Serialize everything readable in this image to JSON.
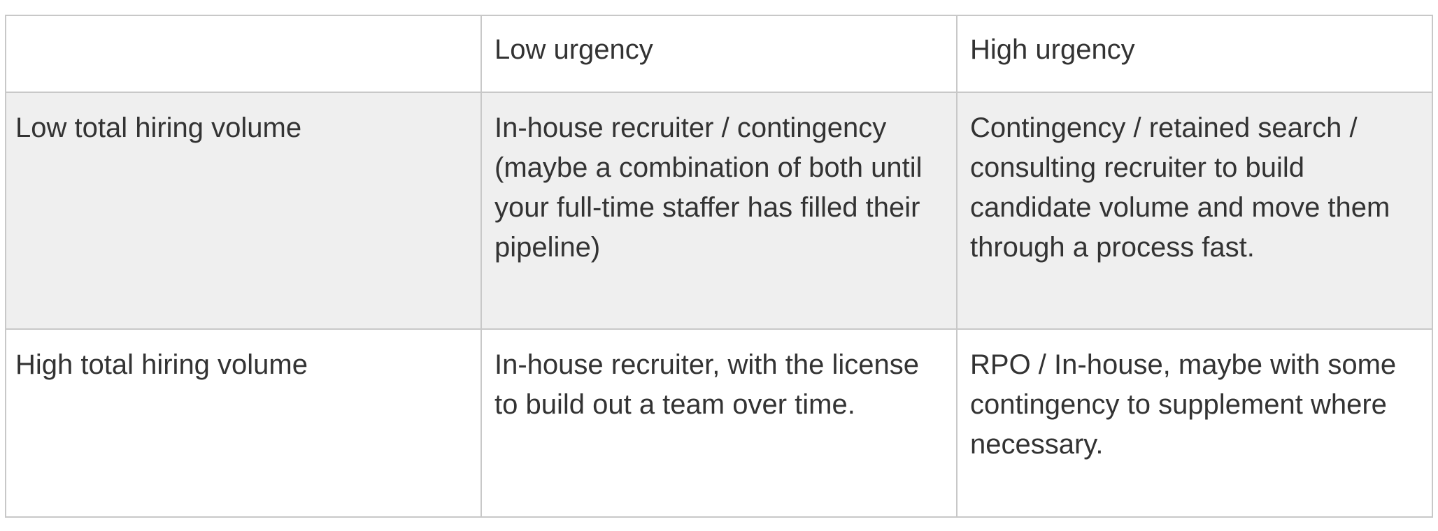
{
  "table": {
    "headers": [
      "",
      "Low urgency",
      "High urgency"
    ],
    "rows": [
      {
        "label": "Low total hiring volume",
        "low_urgency": "In-house recruiter / contingency (maybe a combination of both until your full-time staffer has filled their pipeline)",
        "high_urgency": "Contingency / retained search / consulting recruiter to build candidate volume and move them through a process fast."
      },
      {
        "label": "High total hiring volume",
        "low_urgency": "In-house recruiter, with the license to build out a team over time.",
        "high_urgency": "RPO / In-house, maybe with some contingency to supplement where necessary."
      }
    ]
  }
}
